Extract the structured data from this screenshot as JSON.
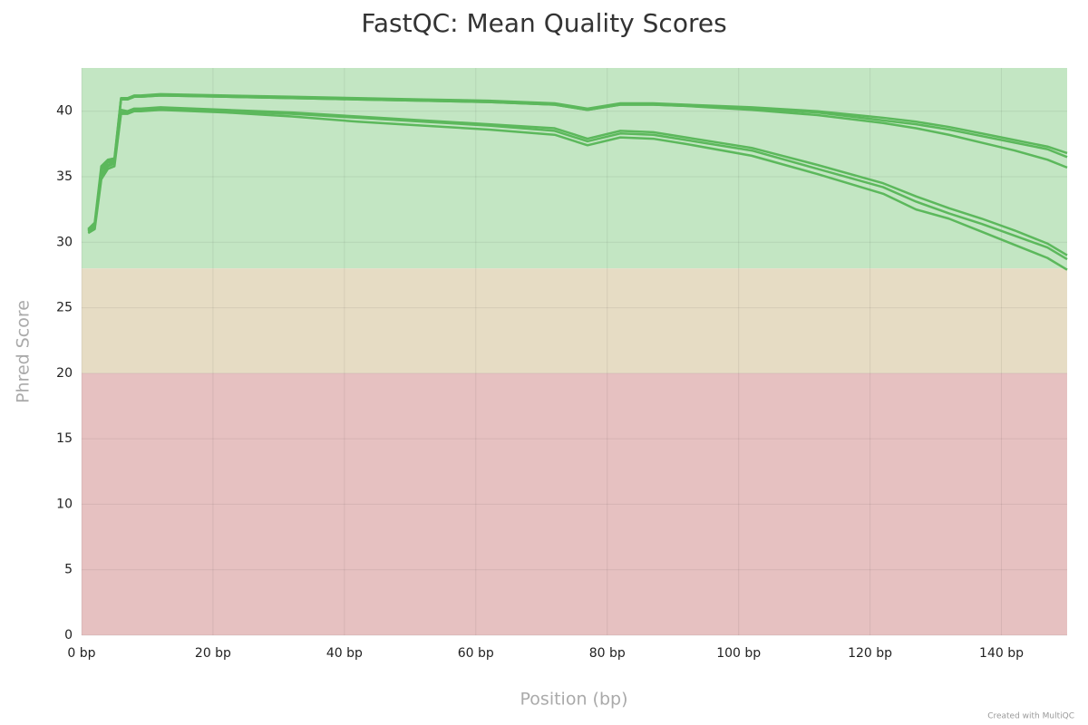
{
  "chart_data": {
    "type": "line",
    "title": "FastQC: Mean Quality Scores",
    "x_label": "Position (bp)",
    "y_label": "Phred Score",
    "credit": "Created with MultiQC",
    "x": [
      1,
      2,
      3,
      4,
      5,
      6,
      7,
      8,
      9,
      12,
      22,
      32,
      42,
      52,
      62,
      72,
      77,
      82,
      87,
      92,
      102,
      112,
      122,
      127,
      132,
      137,
      142,
      147,
      150
    ],
    "series": [
      {
        "color": "#5cb85c",
        "values": [
          31.0,
          31.5,
          35.8,
          36.3,
          36.4,
          41.0,
          41.0,
          41.2,
          41.2,
          41.3,
          41.2,
          41.1,
          41.0,
          40.9,
          40.8,
          40.6,
          40.2,
          40.6,
          40.6,
          40.5,
          40.3,
          40.0,
          39.5,
          39.2,
          38.8,
          38.3,
          37.8,
          37.3,
          36.8
        ]
      },
      {
        "color": "#5cb85c",
        "values": [
          30.9,
          31.3,
          35.6,
          36.2,
          36.3,
          40.9,
          40.9,
          41.1,
          41.1,
          41.2,
          41.1,
          41.0,
          40.9,
          40.8,
          40.7,
          40.5,
          40.1,
          40.5,
          40.5,
          40.4,
          40.2,
          39.9,
          39.3,
          39.0,
          38.6,
          38.1,
          37.6,
          37.1,
          36.5
        ]
      },
      {
        "color": "#5cb85c",
        "values": [
          30.8,
          31.2,
          35.5,
          36.1,
          36.2,
          40.9,
          40.9,
          41.1,
          41.1,
          41.2,
          41.1,
          41.0,
          40.9,
          40.8,
          40.7,
          40.5,
          40.1,
          40.5,
          40.5,
          40.4,
          40.1,
          39.7,
          39.1,
          38.7,
          38.2,
          37.6,
          37.0,
          36.3,
          35.7
        ]
      },
      {
        "color": "#5cb85c",
        "values": [
          31.0,
          31.4,
          35.2,
          35.9,
          36.1,
          40.1,
          40.0,
          40.2,
          40.2,
          40.3,
          40.1,
          39.9,
          39.6,
          39.3,
          39.0,
          38.7,
          37.9,
          38.5,
          38.4,
          38.0,
          37.2,
          35.9,
          34.5,
          33.5,
          32.6,
          31.8,
          30.9,
          29.9,
          29.0
        ]
      },
      {
        "color": "#5cb85c",
        "values": [
          30.9,
          31.2,
          35.0,
          35.8,
          36.0,
          39.9,
          39.9,
          40.1,
          40.1,
          40.2,
          40.0,
          39.8,
          39.5,
          39.2,
          38.9,
          38.5,
          37.7,
          38.3,
          38.2,
          37.8,
          37.0,
          35.6,
          34.2,
          33.1,
          32.2,
          31.4,
          30.5,
          29.6,
          28.7
        ]
      },
      {
        "color": "#5cb85c",
        "values": [
          30.7,
          31.0,
          34.8,
          35.6,
          35.8,
          39.8,
          39.8,
          40.0,
          40.0,
          40.1,
          39.9,
          39.6,
          39.2,
          38.9,
          38.6,
          38.2,
          37.4,
          38.0,
          37.9,
          37.5,
          36.6,
          35.2,
          33.7,
          32.5,
          31.8,
          30.8,
          29.8,
          28.8,
          27.9
        ]
      }
    ],
    "bands": [
      {
        "from": 28,
        "to": 43.3,
        "color": "#c3e6c3"
      },
      {
        "from": 20,
        "to": 28,
        "color": "#e6dcc4"
      },
      {
        "from": 0,
        "to": 20,
        "color": "#e6c1c1"
      }
    ],
    "xlim": [
      0,
      150
    ],
    "ylim": [
      0,
      43.3
    ],
    "xticks": [
      {
        "value": 0,
        "label": "0 bp"
      },
      {
        "value": 20,
        "label": "20 bp"
      },
      {
        "value": 40,
        "label": "40 bp"
      },
      {
        "value": 60,
        "label": "60 bp"
      },
      {
        "value": 80,
        "label": "80 bp"
      },
      {
        "value": 100,
        "label": "100 bp"
      },
      {
        "value": 120,
        "label": "120 bp"
      },
      {
        "value": 140,
        "label": "140 bp"
      }
    ],
    "yticks": [
      0,
      5,
      10,
      15,
      20,
      25,
      30,
      35,
      40
    ],
    "grid": true
  }
}
